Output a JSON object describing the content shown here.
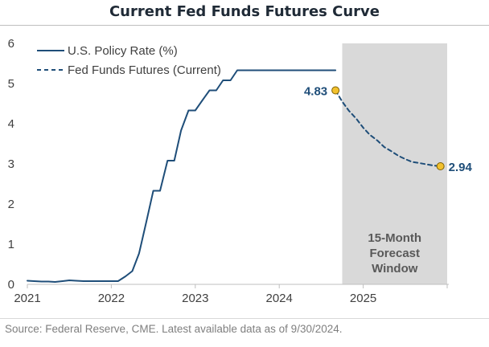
{
  "title": "Current Fed Funds Futures Curve",
  "source": "Source: Federal Reserve, CME. Latest available data as of 9/30/2024.",
  "colors": {
    "line": "#1f4e79",
    "marker": "#f2c12e",
    "shade": "#d9d9d9",
    "axis": "#bfbfbf"
  },
  "chart_data": {
    "type": "line",
    "title": "Current Fed Funds Futures Curve",
    "xlabel": "",
    "ylabel": "",
    "xlim": [
      2021.0,
      2026.0
    ],
    "ylim": [
      0,
      6
    ],
    "x_ticks": [
      "2021",
      "2022",
      "2023",
      "2024",
      "2025"
    ],
    "y_ticks": [
      "0",
      "1",
      "2",
      "3",
      "4",
      "5",
      "6"
    ],
    "grid": false,
    "legend_position": "top-left",
    "series": [
      {
        "name": "U.S. Policy Rate (%)",
        "style": "solid",
        "x": [
          2021.0,
          2021.08,
          2021.17,
          2021.25,
          2021.33,
          2021.42,
          2021.5,
          2021.58,
          2021.67,
          2021.75,
          2021.83,
          2021.92,
          2022.0,
          2022.08,
          2022.17,
          2022.25,
          2022.33,
          2022.42,
          2022.5,
          2022.58,
          2022.67,
          2022.75,
          2022.83,
          2022.92,
          2023.0,
          2023.08,
          2023.17,
          2023.25,
          2023.33,
          2023.42,
          2023.5,
          2023.58,
          2023.67,
          2023.75,
          2023.83,
          2023.92,
          2024.0,
          2024.08,
          2024.17,
          2024.25,
          2024.33,
          2024.42,
          2024.5,
          2024.58,
          2024.67
        ],
        "values": [
          0.09,
          0.08,
          0.07,
          0.07,
          0.06,
          0.08,
          0.1,
          0.09,
          0.08,
          0.08,
          0.08,
          0.08,
          0.08,
          0.08,
          0.2,
          0.33,
          0.77,
          1.58,
          2.33,
          2.33,
          3.08,
          3.08,
          3.83,
          4.33,
          4.33,
          4.57,
          4.83,
          4.83,
          5.08,
          5.08,
          5.33,
          5.33,
          5.33,
          5.33,
          5.33,
          5.33,
          5.33,
          5.33,
          5.33,
          5.33,
          5.33,
          5.33,
          5.33,
          5.33,
          5.33
        ]
      },
      {
        "name": "Fed Funds Futures (Current)",
        "style": "dashed",
        "x": [
          2024.67,
          2024.75,
          2024.83,
          2024.92,
          2025.0,
          2025.08,
          2025.17,
          2025.25,
          2025.33,
          2025.42,
          2025.5,
          2025.58,
          2025.67,
          2025.75,
          2025.83,
          2025.92
        ],
        "values": [
          4.83,
          4.55,
          4.32,
          4.12,
          3.9,
          3.72,
          3.58,
          3.42,
          3.32,
          3.2,
          3.12,
          3.05,
          3.02,
          2.99,
          2.96,
          2.94
        ]
      }
    ],
    "annotations": [
      {
        "text": "4.83",
        "x": 2024.67,
        "y": 4.83,
        "marker": true
      },
      {
        "text": "2.94",
        "x": 2025.92,
        "y": 2.94,
        "marker": true
      }
    ],
    "shaded_region": {
      "x_start": 2024.75,
      "x_end": 2026.0,
      "lines": [
        "15-Month",
        "Forecast",
        "Window"
      ]
    }
  }
}
